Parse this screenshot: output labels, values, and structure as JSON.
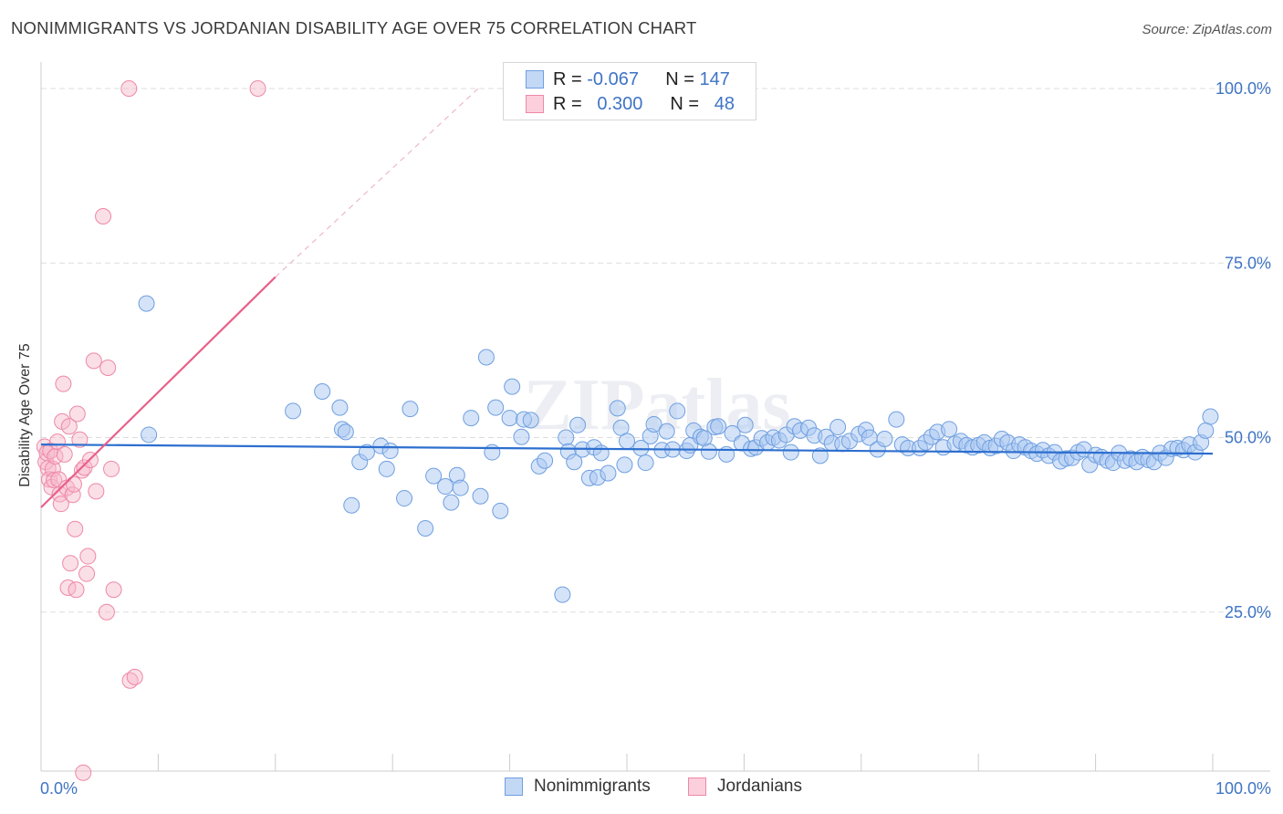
{
  "header": {
    "title": "NONIMMIGRANTS VS JORDANIAN DISABILITY AGE OVER 75 CORRELATION CHART",
    "source": "Source: ZipAtlas.com"
  },
  "legend_top": {
    "rows": [
      {
        "r_label": "R =",
        "r_value": "-0.067",
        "n_label": "N =",
        "n_value": "147"
      },
      {
        "r_label": "R =",
        "r_value": "0.300",
        "n_label": "N =",
        "n_value": "48"
      }
    ]
  },
  "colors": {
    "blue_fill": "#a9c8f1",
    "blue_stroke": "#6f9fe0",
    "blue_line": "#2d6fcf",
    "pink_fill": "#f7b8c9",
    "pink_stroke": "#ee88a6",
    "pink_line": "#e8608a",
    "grid": "#dddddd",
    "tick_text": "#3f74c5"
  },
  "chart_data": {
    "type": "scatter",
    "title": "NONIMMIGRANTS VS JORDANIAN DISABILITY AGE OVER 75 CORRELATION CHART",
    "xlabel": "",
    "ylabel": "Disability Age Over 75",
    "xlim": [
      0,
      100
    ],
    "ylim": [
      0,
      100
    ],
    "x_tick_labels": [
      "0.0%",
      "100.0%"
    ],
    "y_tick_labels": [
      "25.0%",
      "50.0%",
      "75.0%",
      "100.0%"
    ],
    "y_ticks": [
      25,
      50,
      75,
      100
    ],
    "grid": true,
    "legend_position": "bottom",
    "series": [
      {
        "name": "Nonimmigrants",
        "color": "blue",
        "R": -0.067,
        "N": 147,
        "trend": {
          "x0": 0,
          "y0": 49.0,
          "x1": 100,
          "y1": 47.7
        },
        "points": [
          [
            9.0,
            69.2
          ],
          [
            9.2,
            50.4
          ],
          [
            21.5,
            53.8
          ],
          [
            24.0,
            56.6
          ],
          [
            25.5,
            54.3
          ],
          [
            25.7,
            51.2
          ],
          [
            26.0,
            50.8
          ],
          [
            26.5,
            40.3
          ],
          [
            27.2,
            46.5
          ],
          [
            27.8,
            47.9
          ],
          [
            29.0,
            48.8
          ],
          [
            29.5,
            45.5
          ],
          [
            29.8,
            48.1
          ],
          [
            31.0,
            41.3
          ],
          [
            31.5,
            54.1
          ],
          [
            32.8,
            37.0
          ],
          [
            33.5,
            44.5
          ],
          [
            34.5,
            43.0
          ],
          [
            35.0,
            40.7
          ],
          [
            35.5,
            44.6
          ],
          [
            35.8,
            42.8
          ],
          [
            36.7,
            52.8
          ],
          [
            37.5,
            41.6
          ],
          [
            38.0,
            61.5
          ],
          [
            38.5,
            47.9
          ],
          [
            38.8,
            54.3
          ],
          [
            39.2,
            39.5
          ],
          [
            40.0,
            52.8
          ],
          [
            40.2,
            57.3
          ],
          [
            41.0,
            50.1
          ],
          [
            41.2,
            52.6
          ],
          [
            41.8,
            52.5
          ],
          [
            42.5,
            45.9
          ],
          [
            43.0,
            46.7
          ],
          [
            44.5,
            27.5
          ],
          [
            44.8,
            50.0
          ],
          [
            45.0,
            48.0
          ],
          [
            45.5,
            46.5
          ],
          [
            45.8,
            51.8
          ],
          [
            46.2,
            48.3
          ],
          [
            46.8,
            44.2
          ],
          [
            47.2,
            48.6
          ],
          [
            47.5,
            44.3
          ],
          [
            47.8,
            47.8
          ],
          [
            48.4,
            44.9
          ],
          [
            49.2,
            54.2
          ],
          [
            49.5,
            51.4
          ],
          [
            49.8,
            46.1
          ],
          [
            50.0,
            49.5
          ],
          [
            51.2,
            48.5
          ],
          [
            51.6,
            46.4
          ],
          [
            52.0,
            50.2
          ],
          [
            52.3,
            51.9
          ],
          [
            53.0,
            48.2
          ],
          [
            53.4,
            50.9
          ],
          [
            53.9,
            48.3
          ],
          [
            54.3,
            53.8
          ],
          [
            55.1,
            48.1
          ],
          [
            55.4,
            48.9
          ],
          [
            55.7,
            51.0
          ],
          [
            56.3,
            50.1
          ],
          [
            56.6,
            49.9
          ],
          [
            57.0,
            48.0
          ],
          [
            57.5,
            51.5
          ],
          [
            57.8,
            51.6
          ],
          [
            58.5,
            47.6
          ],
          [
            59.0,
            50.6
          ],
          [
            59.8,
            49.2
          ],
          [
            60.1,
            51.8
          ],
          [
            60.6,
            48.4
          ],
          [
            61.0,
            48.6
          ],
          [
            61.5,
            49.9
          ],
          [
            62.0,
            49.3
          ],
          [
            62.5,
            50.0
          ],
          [
            63.0,
            49.6
          ],
          [
            63.6,
            50.4
          ],
          [
            64.0,
            47.9
          ],
          [
            64.3,
            51.6
          ],
          [
            64.8,
            51.0
          ],
          [
            65.5,
            51.4
          ],
          [
            66.0,
            50.3
          ],
          [
            66.5,
            47.4
          ],
          [
            67.0,
            50.1
          ],
          [
            67.5,
            49.2
          ],
          [
            68.0,
            51.5
          ],
          [
            68.4,
            49.1
          ],
          [
            69.0,
            49.5
          ],
          [
            69.8,
            50.5
          ],
          [
            70.4,
            51.1
          ],
          [
            70.7,
            50.0
          ],
          [
            71.4,
            48.3
          ],
          [
            72.0,
            49.8
          ],
          [
            73.0,
            52.6
          ],
          [
            73.5,
            49.0
          ],
          [
            74.0,
            48.5
          ],
          [
            75.0,
            48.5
          ],
          [
            75.5,
            49.3
          ],
          [
            76.0,
            50.1
          ],
          [
            76.5,
            50.8
          ],
          [
            77.0,
            48.6
          ],
          [
            77.5,
            51.2
          ],
          [
            78.0,
            49.1
          ],
          [
            78.5,
            49.5
          ],
          [
            79.0,
            48.9
          ],
          [
            79.5,
            48.6
          ],
          [
            80.0,
            48.9
          ],
          [
            80.5,
            49.3
          ],
          [
            81.0,
            48.5
          ],
          [
            81.5,
            48.8
          ],
          [
            82.0,
            49.8
          ],
          [
            82.5,
            49.3
          ],
          [
            83.0,
            48.1
          ],
          [
            83.5,
            49.0
          ],
          [
            84.0,
            48.6
          ],
          [
            84.5,
            48.1
          ],
          [
            85.0,
            47.7
          ],
          [
            85.5,
            48.2
          ],
          [
            86.0,
            47.4
          ],
          [
            86.5,
            47.9
          ],
          [
            87.0,
            46.6
          ],
          [
            87.5,
            47.0
          ],
          [
            88.0,
            47.1
          ],
          [
            88.5,
            47.9
          ],
          [
            89.0,
            48.3
          ],
          [
            89.5,
            46.1
          ],
          [
            90.0,
            47.5
          ],
          [
            90.5,
            47.2
          ],
          [
            91.0,
            46.7
          ],
          [
            91.5,
            46.4
          ],
          [
            92.0,
            47.8
          ],
          [
            92.5,
            46.7
          ],
          [
            93.0,
            47.0
          ],
          [
            93.5,
            46.5
          ],
          [
            94.0,
            47.2
          ],
          [
            94.5,
            46.8
          ],
          [
            95.0,
            46.5
          ],
          [
            95.5,
            47.8
          ],
          [
            96.0,
            47.1
          ],
          [
            96.5,
            48.4
          ],
          [
            97.0,
            48.5
          ],
          [
            97.5,
            48.2
          ],
          [
            98.0,
            49.0
          ],
          [
            98.5,
            47.9
          ],
          [
            99.0,
            49.3
          ],
          [
            99.4,
            51.0
          ],
          [
            99.8,
            53.0
          ]
        ]
      },
      {
        "name": "Jordanians",
        "color": "pink",
        "R": 0.3,
        "N": 48,
        "trend": {
          "x0": 0,
          "y0": 40.0,
          "x1": 20.0,
          "y1": 73.0,
          "dash_to": {
            "x": 37.5,
            "y": 100.3
          }
        },
        "points": [
          [
            0.3,
            48.7
          ],
          [
            0.4,
            46.5
          ],
          [
            0.5,
            47.8
          ],
          [
            0.6,
            45.6
          ],
          [
            0.7,
            44.0
          ],
          [
            0.8,
            48.1
          ],
          [
            0.9,
            42.9
          ],
          [
            1.0,
            45.5
          ],
          [
            1.1,
            43.9
          ],
          [
            1.2,
            47.3
          ],
          [
            1.4,
            49.4
          ],
          [
            1.5,
            44.0
          ],
          [
            1.6,
            41.9
          ],
          [
            1.7,
            40.5
          ],
          [
            1.8,
            52.3
          ],
          [
            1.9,
            57.7
          ],
          [
            2.0,
            47.6
          ],
          [
            2.2,
            42.8
          ],
          [
            2.3,
            28.5
          ],
          [
            2.4,
            51.6
          ],
          [
            2.5,
            32.0
          ],
          [
            2.7,
            41.8
          ],
          [
            2.8,
            43.3
          ],
          [
            2.9,
            36.9
          ],
          [
            3.0,
            28.2
          ],
          [
            3.1,
            53.4
          ],
          [
            3.3,
            49.7
          ],
          [
            3.5,
            45.3
          ],
          [
            3.6,
            2.0
          ],
          [
            3.7,
            45.7
          ],
          [
            3.9,
            30.5
          ],
          [
            4.0,
            33.0
          ],
          [
            4.2,
            46.8
          ],
          [
            4.5,
            61.0
          ],
          [
            4.7,
            42.3
          ],
          [
            5.3,
            81.7
          ],
          [
            5.6,
            25.0
          ],
          [
            5.7,
            60.0
          ],
          [
            6.0,
            45.5
          ],
          [
            6.2,
            28.2
          ],
          [
            7.5,
            100.0
          ],
          [
            7.6,
            15.2
          ],
          [
            8.0,
            15.7
          ],
          [
            18.5,
            100.0
          ]
        ]
      }
    ]
  },
  "legend_bottom": {
    "items": [
      {
        "label": "Nonimmigrants"
      },
      {
        "label": "Jordanians"
      }
    ]
  },
  "watermark": "ZIPatlas"
}
